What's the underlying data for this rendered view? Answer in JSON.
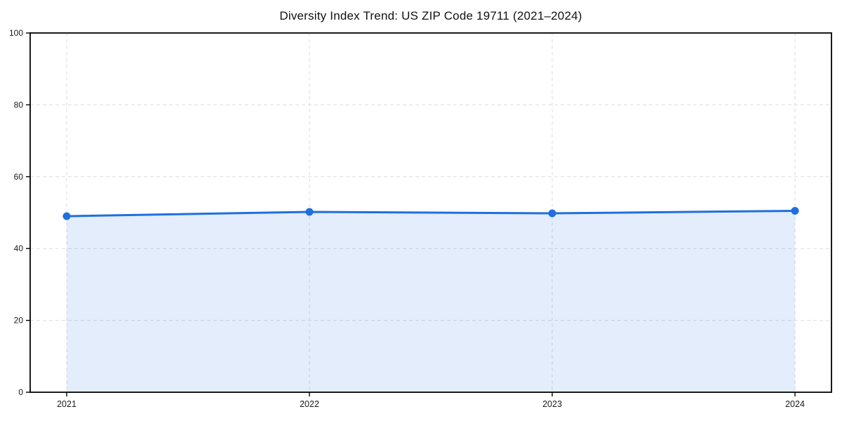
{
  "chart_data": {
    "type": "area",
    "title": "Diversity Index Trend: US ZIP Code 19711 (2021–2024)",
    "categories": [
      "2021",
      "2022",
      "2023",
      "2024"
    ],
    "series": [
      {
        "name": "Diversity Index",
        "values": [
          49.0,
          50.2,
          49.8,
          50.5
        ]
      }
    ],
    "xlabel": "",
    "ylabel": "",
    "ylim": [
      0,
      100
    ],
    "yticks": [
      0,
      20,
      40,
      60,
      80,
      100
    ],
    "grid": "dashed both directions at ticks",
    "legend": "none",
    "marker": "circle"
  },
  "colors": {
    "line": "#1f6fe0",
    "area_fill": "#1f6fe0",
    "area_fill_opacity": "0.12",
    "grid": "#dddddd",
    "axis": "#000000",
    "tick_label": "#1a1a1a",
    "background": "#ffffff"
  }
}
